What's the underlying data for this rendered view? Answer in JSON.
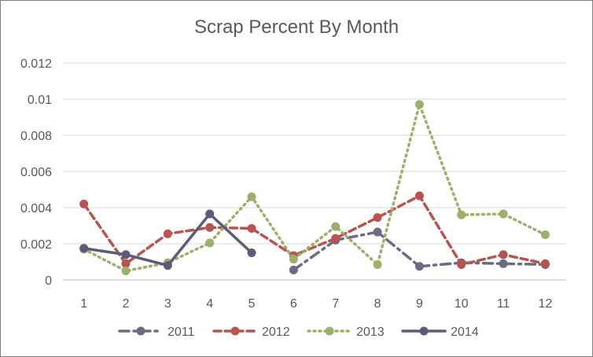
{
  "chart_data": {
    "type": "line",
    "title": "Scrap Percent By Month",
    "xlabel": "",
    "ylabel": "",
    "x": [
      1,
      2,
      3,
      4,
      5,
      6,
      7,
      8,
      9,
      10,
      11,
      12
    ],
    "ylim": [
      0,
      0.012
    ],
    "yticks": [
      "0",
      "0.002",
      "0.004",
      "0.006",
      "0.008",
      "0.01",
      "0.012"
    ],
    "grid": true,
    "legend": "bottom",
    "series": [
      {
        "name": "2011",
        "color": "#6b6b85",
        "dash": "dashdot",
        "values": [
          null,
          null,
          null,
          null,
          null,
          0.00055,
          0.0022,
          0.00265,
          0.00075,
          0.00095,
          0.0009,
          0.00085
        ]
      },
      {
        "name": "2012",
        "color": "#b85450",
        "dash": "dash",
        "values": [
          0.0042,
          0.0009,
          0.00255,
          0.0029,
          0.00285,
          0.00135,
          0.0023,
          0.00345,
          0.00465,
          0.00085,
          0.0014,
          0.0009
        ]
      },
      {
        "name": "2013",
        "color": "#9bb06b",
        "dash": "dot",
        "values": [
          0.0017,
          0.0005,
          0.00095,
          0.00205,
          0.0046,
          0.00115,
          0.00295,
          0.00085,
          0.0097,
          0.0036,
          0.00365,
          0.0025
        ]
      },
      {
        "name": "2014",
        "color": "#5c5c7a",
        "dash": "solid",
        "values": [
          0.00175,
          0.0014,
          0.0008,
          0.00365,
          0.0015,
          null,
          null,
          null,
          null,
          null,
          null,
          null
        ]
      }
    ]
  }
}
